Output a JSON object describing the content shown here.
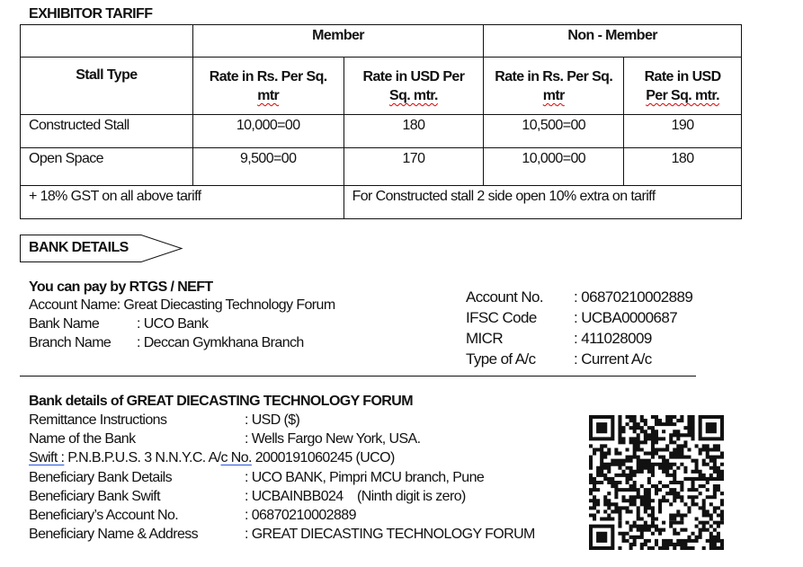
{
  "tariff": {
    "title": "EXHIBITOR TARIFF",
    "groups": {
      "member": "Member",
      "non_member": "Non - Member"
    },
    "headers": {
      "stall_type": "Stall Type",
      "rs_a": "Rate in Rs. Per Sq.",
      "rs_b": "mtr",
      "usd_a": "Rate in USD Per",
      "usd_b": "Sq. mtr.",
      "nm_rs_a": "Rate in Rs. Per Sq.",
      "nm_rs_b": "mtr",
      "nm_usd_a": "Rate in USD",
      "nm_usd_b": "Per Sq. mtr."
    },
    "rows": [
      {
        "type": "Constructed Stall",
        "m_rs": "10,000=00",
        "m_usd": "180",
        "nm_rs": "10,500=00",
        "nm_usd": "190"
      },
      {
        "type": "Open Space",
        "m_rs": "9,500=00",
        "m_usd": "170",
        "nm_rs": "10,000=00",
        "nm_usd": "180"
      }
    ],
    "note_left": "+ 18% GST on all above tariff",
    "note_right": "For Constructed stall 2 side open 10% extra on tariff"
  },
  "bank": {
    "title": "BANK DETAILS",
    "pay_line": "You can pay by RTGS / NEFT",
    "account_name": "Account Name: Great Diecasting Technology Forum",
    "left": [
      {
        "label": "Bank Name",
        "value": ": UCO Bank"
      },
      {
        "label": "Branch Name",
        "value": ": Deccan Gymkhana Branch"
      }
    ],
    "right": [
      {
        "label": "Account No.",
        "value": ": 06870210002889"
      },
      {
        "label": "IFSC Code",
        "value": ": UCBA0000687"
      },
      {
        "label": "MICR",
        "value": ": 411028009"
      },
      {
        "label": "Type of A/c",
        "value": ": Current A/c"
      }
    ]
  },
  "intl": {
    "title": "Bank details of GREAT DIECASTING TECHNOLOGY FORUM",
    "rows": [
      {
        "label": "Remittance Instructions",
        "value": ":  USD ($)"
      },
      {
        "label": "Name of the Bank",
        "value": ":  Wells Fargo New York, USA."
      }
    ],
    "swift_label": "Swift :",
    "swift_value": "P.N.B.P.U.S. 3 N.N.Y.C.  A/",
    "acno_label": "c  No.",
    "acno_value": "2000191060245 (UCO)",
    "rows2": [
      {
        "label": "Beneficiary Bank Details",
        "value": ": UCO BANK, Pimpri MCU branch, Pune"
      },
      {
        "label": "Beneficiary Bank Swift",
        "value": ": UCBAINBB024    (Ninth digit is zero)"
      },
      {
        "label": "Beneficiary’s Account No.",
        "value": ": 06870210002889"
      },
      {
        "label": "Beneficiary Name & Address",
        "value": ": GREAT DIECASTING TECHNOLOGY FORUM"
      }
    ]
  },
  "qr_icon": "qr-code"
}
